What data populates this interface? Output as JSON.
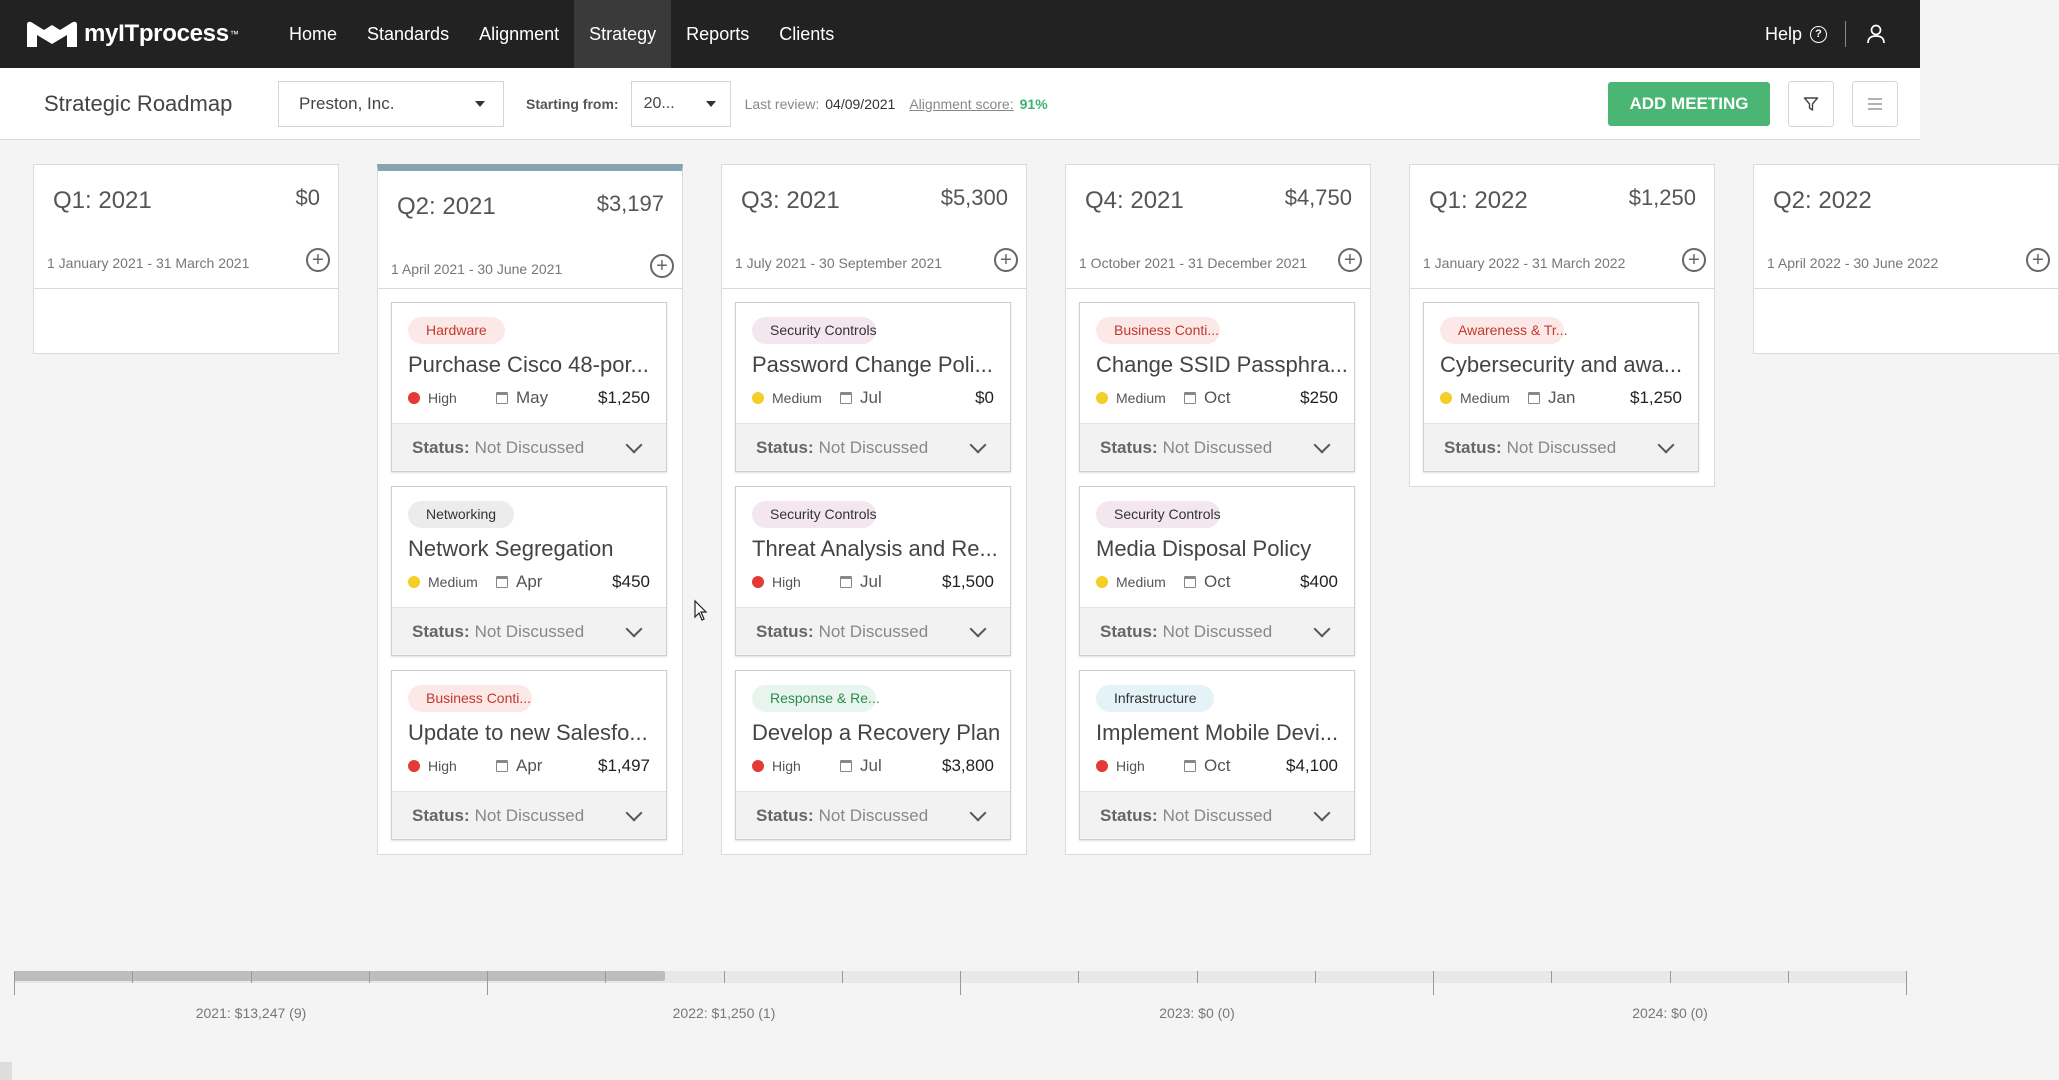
{
  "app": {
    "logo_text": "myITprocess",
    "nav": [
      {
        "label": "Home",
        "active": false
      },
      {
        "label": "Standards",
        "active": false
      },
      {
        "label": "Alignment",
        "active": false
      },
      {
        "label": "Strategy",
        "active": true
      },
      {
        "label": "Reports",
        "active": false
      },
      {
        "label": "Clients",
        "active": false
      }
    ],
    "help_label": "Help",
    "help_icon": "question-circle-icon",
    "user_icon": "user-icon"
  },
  "toolbar": {
    "title": "Strategic Roadmap",
    "client": "Preston, Inc.",
    "starting_from_label": "Starting from:",
    "starting_from_value": "20...",
    "last_review_label": "Last review:",
    "last_review_value": "04/09/2021",
    "alignment_score_label": "Alignment score:",
    "alignment_score_value": "91%",
    "add_meeting_label": "ADD MEETING",
    "accent_color": "#4bb673"
  },
  "status_prefix": "Status:",
  "columns": [
    {
      "title": "Q1: 2021",
      "amount": "$0",
      "range": "1 January 2021 - 31 March 2021",
      "selected": false,
      "cards": []
    },
    {
      "title": "Q2: 2021",
      "amount": "$3,197",
      "range": "1 April 2021 - 30 June 2021",
      "selected": true,
      "cards": [
        {
          "tag": "Hardware",
          "tag_color": "red",
          "title": "Purchase Cisco 48-por...",
          "priority": "High",
          "month": "May",
          "cost": "$1,250",
          "status": "Not Discussed"
        },
        {
          "tag": "Networking",
          "tag_color": "gray",
          "title": "Network Segregation",
          "priority": "Medium",
          "month": "Apr",
          "cost": "$450",
          "status": "Not Discussed"
        },
        {
          "tag": "Business Conti...",
          "tag_color": "red",
          "title": "Update to new Salesfo...",
          "priority": "High",
          "month": "Apr",
          "cost": "$1,497",
          "status": "Not Discussed"
        }
      ]
    },
    {
      "title": "Q3: 2021",
      "amount": "$5,300",
      "range": "1 July 2021 - 30 September 2021",
      "selected": false,
      "cards": [
        {
          "tag": "Security Controls",
          "tag_color": "purple",
          "title": "Password Change Poli...",
          "priority": "Medium",
          "month": "Jul",
          "cost": "$0",
          "status": "Not Discussed"
        },
        {
          "tag": "Security Controls",
          "tag_color": "purple",
          "title": "Threat Analysis and Re...",
          "priority": "High",
          "month": "Jul",
          "cost": "$1,500",
          "status": "Not Discussed"
        },
        {
          "tag": "Response & Re...",
          "tag_color": "green",
          "title": "Develop a Recovery Plan",
          "priority": "High",
          "month": "Jul",
          "cost": "$3,800",
          "status": "Not Discussed"
        }
      ]
    },
    {
      "title": "Q4: 2021",
      "amount": "$4,750",
      "range": "1 October 2021 - 31 December 2021",
      "selected": false,
      "cards": [
        {
          "tag": "Business Conti...",
          "tag_color": "red",
          "title": "Change SSID Passphra...",
          "priority": "Medium",
          "month": "Oct",
          "cost": "$250",
          "status": "Not Discussed"
        },
        {
          "tag": "Security Controls",
          "tag_color": "purple",
          "title": "Media Disposal Policy",
          "priority": "Medium",
          "month": "Oct",
          "cost": "$400",
          "status": "Not Discussed"
        },
        {
          "tag": "Infrastructure",
          "tag_color": "cyan",
          "title": "Implement Mobile Devi...",
          "priority": "High",
          "month": "Oct",
          "cost": "$4,100",
          "status": "Not Discussed"
        }
      ]
    },
    {
      "title": "Q1: 2022",
      "amount": "$1,250",
      "range": "1 January 2022 - 31 March 2022",
      "selected": false,
      "cards": [
        {
          "tag": "Awareness & Tr...",
          "tag_color": "red",
          "title": "Cybersecurity and awa...",
          "priority": "Medium",
          "month": "Jan",
          "cost": "$1,250",
          "status": "Not Discussed"
        }
      ]
    },
    {
      "title": "Q2: 2022",
      "amount": "",
      "range": "1 April 2022 - 30 June 2022",
      "selected": false,
      "cards": []
    }
  ],
  "timeline": {
    "labels": [
      "2021: $13,247 (9)",
      "2022: $1,250 (1)",
      "2023: $0 (0)",
      "2024: $0 (0)"
    ]
  }
}
